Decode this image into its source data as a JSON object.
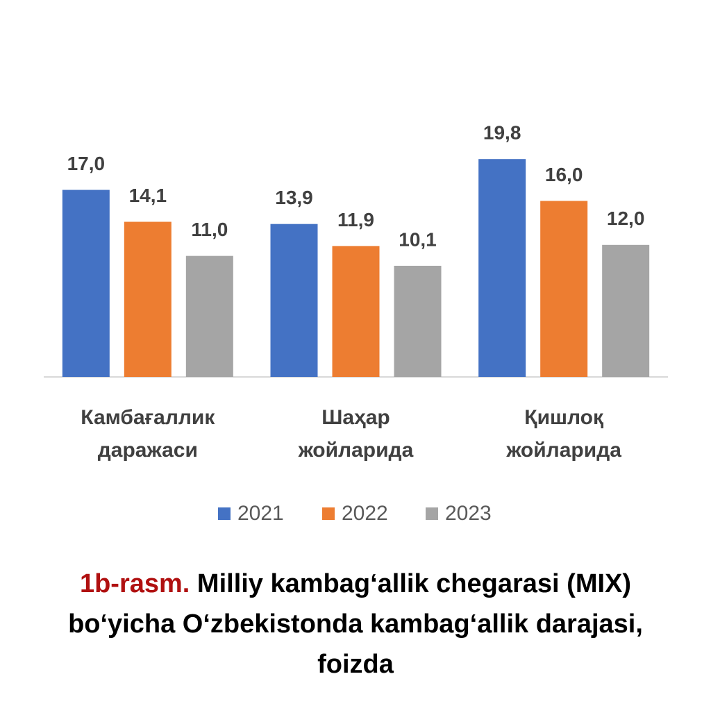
{
  "chart_data": {
    "type": "bar",
    "categories": [
      "Камбағаллик даражаси",
      "Шаҳар жойларида",
      "Қишлоқ жойларида"
    ],
    "series": [
      {
        "name": "2021",
        "color": "#4472c4",
        "values": [
          17.0,
          13.9,
          19.8
        ],
        "value_labels": [
          "17,0",
          "13,9",
          "19,8"
        ]
      },
      {
        "name": "2022",
        "color": "#ed7d31",
        "values": [
          14.1,
          11.9,
          16.0
        ],
        "value_labels": [
          "14,1",
          "11,9",
          "16,0"
        ]
      },
      {
        "name": "2023",
        "color": "#a5a5a5",
        "values": [
          11.0,
          10.1,
          12.0
        ],
        "value_labels": [
          "11,0",
          "10,1",
          "12,0"
        ]
      }
    ],
    "ylim": [
      0,
      20
    ],
    "grid": false,
    "legend": "bottom"
  },
  "caption": {
    "label": "1b-rasm.",
    "text": "Milliy kambag‘allik chegarasi (MIX) bo‘yicha O‘zbekistonda kambag‘allik darajasi, foizda"
  }
}
